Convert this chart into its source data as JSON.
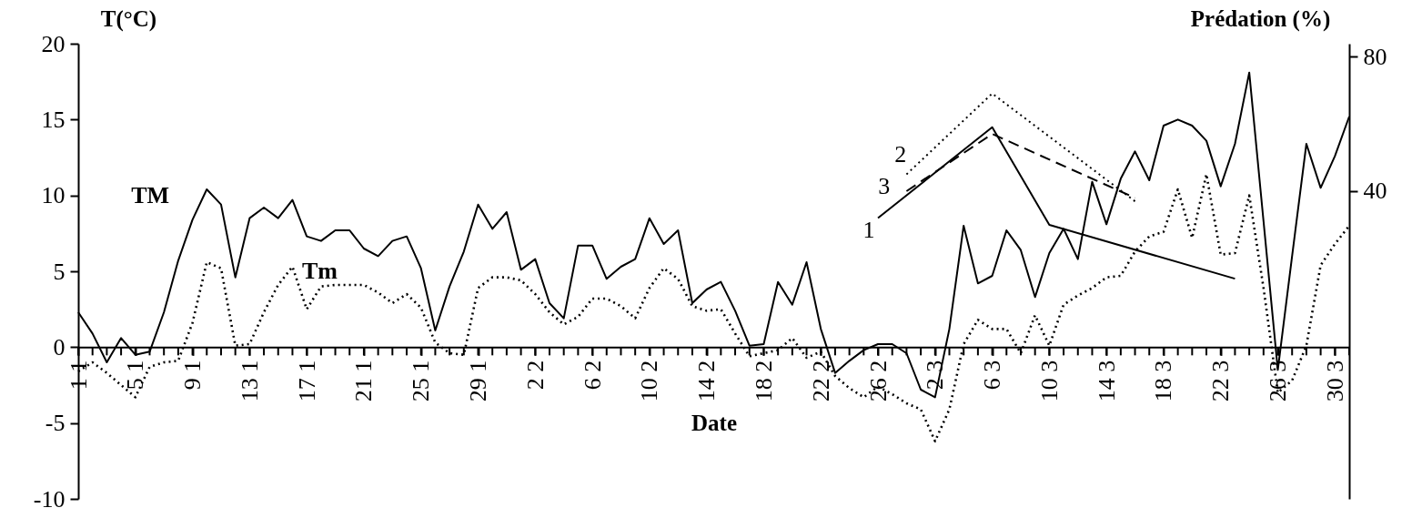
{
  "chart_data": {
    "type": "line",
    "xlabel": "Date",
    "ylabel": "T(°C)",
    "y2label": "Prédation (%)",
    "x": [
      "--01-01",
      "--01-02",
      "--01-03",
      "--01-04",
      "--01-05",
      "--01-06",
      "--01-07",
      "--01-08",
      "--01-09",
      "--01-10",
      "--01-11",
      "--01-12",
      "--01-13",
      "--01-14",
      "--01-15",
      "--01-16",
      "--01-17",
      "--01-18",
      "--01-19",
      "--01-20",
      "--01-21",
      "--01-22",
      "--01-23",
      "--01-24",
      "--01-25",
      "--01-26",
      "--01-27",
      "--01-28",
      "--01-29",
      "--01-30",
      "--01-31",
      "--02-01",
      "--02-02",
      "--02-03",
      "--02-04",
      "--02-05",
      "--02-06",
      "--02-07",
      "--02-08",
      "--02-09",
      "--02-10",
      "--02-11",
      "--02-12",
      "--02-13",
      "--02-14",
      "--02-15",
      "--02-16",
      "--02-17",
      "--02-18",
      "--02-19",
      "--02-20",
      "--02-21",
      "--02-22",
      "--02-23",
      "--02-24",
      "--02-25",
      "--02-26",
      "--02-27",
      "--02-28",
      "--03-01",
      "--03-02",
      "--03-03",
      "--03-04",
      "--03-05",
      "--03-06",
      "--03-07",
      "--03-08",
      "--03-09",
      "--03-10",
      "--03-11",
      "--03-12",
      "--03-13",
      "--03-14",
      "--03-15",
      "--03-16",
      "--03-17",
      "--03-18",
      "--03-19",
      "--03-20",
      "--03-21",
      "--03-22",
      "--03-23",
      "--03-24",
      "--03-25",
      "--03-26",
      "--03-27",
      "--03-28",
      "--03-29",
      "--03-30",
      "--03-31"
    ],
    "series": [
      {
        "name": "TM",
        "color": "#000000",
        "line_style": "solid",
        "values": [
          2.3,
          0.9,
          -1.0,
          0.6,
          -0.5,
          -0.3,
          2.3,
          5.7,
          8.4,
          10.4,
          9.4,
          4.6,
          8.5,
          9.2,
          8.5,
          9.7,
          7.3,
          7.0,
          7.7,
          7.7,
          6.5,
          6.0,
          7.0,
          7.3,
          5.2,
          1.1,
          4.0,
          6.3,
          9.4,
          7.8,
          8.9,
          5.1,
          5.8,
          2.9,
          1.9,
          6.7,
          6.7,
          4.5,
          5.3,
          5.8,
          8.5,
          6.8,
          7.7,
          2.9,
          3.8,
          4.3,
          2.4,
          0.1,
          0.2,
          4.3,
          2.8,
          5.6,
          1.2,
          -1.7,
          -0.9,
          -0.2,
          0.2,
          0.2,
          -0.4,
          -2.8,
          -3.3,
          1.2,
          8.0,
          4.2,
          4.7,
          7.7,
          6.4,
          3.3,
          6.2,
          7.8,
          5.8,
          10.9,
          8.1,
          11.1,
          12.9,
          11.0,
          14.6,
          15.0,
          14.6,
          13.6,
          10.6,
          13.4,
          18.1,
          8.3,
          -1.5,
          6.0,
          13.4,
          10.5,
          12.6,
          15.2
        ]
      },
      {
        "name": "Tm",
        "color": "#000000",
        "line_style": "dotted",
        "values": [
          -1.6,
          -1.0,
          -1.7,
          -2.5,
          -3.3,
          -1.3,
          -1.0,
          -0.9,
          1.6,
          5.6,
          5.2,
          0.1,
          0.2,
          2.3,
          4.1,
          5.3,
          2.5,
          4.0,
          4.1,
          4.1,
          4.1,
          3.6,
          2.9,
          3.5,
          2.6,
          0.3,
          -0.4,
          -0.5,
          3.9,
          4.6,
          4.6,
          4.4,
          3.5,
          2.3,
          1.5,
          2.0,
          3.2,
          3.2,
          2.7,
          1.9,
          3.9,
          5.2,
          4.5,
          2.7,
          2.4,
          2.5,
          0.9,
          -0.6,
          -0.4,
          -0.2,
          0.6,
          -0.7,
          -0.3,
          -1.9,
          -2.7,
          -3.3,
          -2.6,
          -3.1,
          -3.7,
          -4.1,
          -6.2,
          -4.1,
          0.2,
          1.8,
          1.2,
          1.2,
          -0.4,
          2.1,
          0.1,
          2.8,
          3.4,
          3.9,
          4.6,
          4.7,
          6.3,
          7.3,
          7.6,
          10.4,
          7.2,
          11.4,
          6.1,
          6.2,
          10.0,
          3.9,
          -3.0,
          -2.2,
          0.1,
          5.4,
          6.8,
          8.0
        ]
      },
      {
        "name": "1",
        "color": "#000000",
        "line_style": "solid",
        "axis": "y2",
        "x": [
          "--02-26",
          "--03-06",
          "--03-10",
          "--03-23"
        ],
        "values": [
          32,
          59,
          30,
          14
        ]
      },
      {
        "name": "2",
        "color": "#000000",
        "line_style": "dotted",
        "axis": "y2",
        "x": [
          "--02-28",
          "--03-06",
          "--03-16"
        ],
        "values": [
          45,
          69,
          37
        ]
      },
      {
        "name": "3",
        "color": "#000000",
        "line_style": "dashed",
        "axis": "y2",
        "x": [
          "--02-28",
          "--03-06",
          "--03-16"
        ],
        "values": [
          40,
          57,
          38
        ]
      }
    ],
    "xlim": [
      "--01-01",
      "--03-31"
    ],
    "xticks": [
      {
        "value": "--01-01",
        "label": "1 1"
      },
      {
        "value": "--01-02",
        "label": null
      },
      {
        "value": "--01-03",
        "label": null
      },
      {
        "value": "--01-04",
        "label": null
      },
      {
        "value": "--01-05",
        "label": "5 1"
      },
      {
        "value": "--01-06",
        "label": null
      },
      {
        "value": "--01-07",
        "label": null
      },
      {
        "value": "--01-08",
        "label": null
      },
      {
        "value": "--01-09",
        "label": "9 1"
      },
      {
        "value": "--01-10",
        "label": null
      },
      {
        "value": "--01-11",
        "label": null
      },
      {
        "value": "--01-12",
        "label": null
      },
      {
        "value": "--01-13",
        "label": "13 1"
      },
      {
        "value": "--01-14",
        "label": null
      },
      {
        "value": "--01-15",
        "label": null
      },
      {
        "value": "--01-16",
        "label": null
      },
      {
        "value": "--01-17",
        "label": "17 1"
      },
      {
        "value": "--01-18",
        "label": null
      },
      {
        "value": "--01-19",
        "label": null
      },
      {
        "value": "--01-20",
        "label": null
      },
      {
        "value": "--01-21",
        "label": "21 1"
      },
      {
        "value": "--01-22",
        "label": null
      },
      {
        "value": "--01-23",
        "label": null
      },
      {
        "value": "--01-24",
        "label": null
      },
      {
        "value": "--01-25",
        "label": "25 1"
      },
      {
        "value": "--01-26",
        "label": null
      },
      {
        "value": "--01-27",
        "label": null
      },
      {
        "value": "--01-28",
        "label": null
      },
      {
        "value": "--01-29",
        "label": "29 1"
      },
      {
        "value": "--01-30",
        "label": null
      },
      {
        "value": "--01-31",
        "label": null
      },
      {
        "value": "--02-01",
        "label": null
      },
      {
        "value": "--02-02",
        "label": "2 2"
      },
      {
        "value": "--02-03",
        "label": null
      },
      {
        "value": "--02-04",
        "label": null
      },
      {
        "value": "--02-05",
        "label": null
      },
      {
        "value": "--02-06",
        "label": "6 2"
      },
      {
        "value": "--02-07",
        "label": null
      },
      {
        "value": "--02-08",
        "label": null
      },
      {
        "value": "--02-09",
        "label": null
      },
      {
        "value": "--02-10",
        "label": "10 2"
      },
      {
        "value": "--02-11",
        "label": null
      },
      {
        "value": "--02-12",
        "label": null
      },
      {
        "value": "--02-13",
        "label": null
      },
      {
        "value": "--02-14",
        "label": "14 2"
      },
      {
        "value": "--02-15",
        "label": null
      },
      {
        "value": "--02-16",
        "label": null
      },
      {
        "value": "--02-17",
        "label": null
      },
      {
        "value": "--02-18",
        "label": "18 2"
      },
      {
        "value": "--02-19",
        "label": null
      },
      {
        "value": "--02-20",
        "label": null
      },
      {
        "value": "--02-21",
        "label": null
      },
      {
        "value": "--02-22",
        "label": "22 2"
      },
      {
        "value": "--02-23",
        "label": null
      },
      {
        "value": "--02-24",
        "label": null
      },
      {
        "value": "--02-25",
        "label": null
      },
      {
        "value": "--02-26",
        "label": "26 2"
      },
      {
        "value": "--02-27",
        "label": null
      },
      {
        "value": "--02-28",
        "label": null
      },
      {
        "value": "--03-01",
        "label": null
      },
      {
        "value": "--03-02",
        "label": "2 3"
      },
      {
        "value": "--03-03",
        "label": null
      },
      {
        "value": "--03-04",
        "label": null
      },
      {
        "value": "--03-05",
        "label": null
      },
      {
        "value": "--03-06",
        "label": "6 3"
      },
      {
        "value": "--03-07",
        "label": null
      },
      {
        "value": "--03-08",
        "label": null
      },
      {
        "value": "--03-09",
        "label": null
      },
      {
        "value": "--03-10",
        "label": "10 3"
      },
      {
        "value": "--03-11",
        "label": null
      },
      {
        "value": "--03-12",
        "label": null
      },
      {
        "value": "--03-13",
        "label": null
      },
      {
        "value": "--03-14",
        "label": "14 3"
      },
      {
        "value": "--03-15",
        "label": null
      },
      {
        "value": "--03-16",
        "label": null
      },
      {
        "value": "--03-17",
        "label": null
      },
      {
        "value": "--03-18",
        "label": "18 3"
      },
      {
        "value": "--03-19",
        "label": null
      },
      {
        "value": "--03-20",
        "label": null
      },
      {
        "value": "--03-21",
        "label": null
      },
      {
        "value": "--03-22",
        "label": "22 3"
      },
      {
        "value": "--03-23",
        "label": null
      },
      {
        "value": "--03-24",
        "label": null
      },
      {
        "value": "--03-25",
        "label": null
      },
      {
        "value": "--03-26",
        "label": "26 3"
      },
      {
        "value": "--03-27",
        "label": null
      },
      {
        "value": "--03-28",
        "label": null
      },
      {
        "value": "--03-29",
        "label": null
      },
      {
        "value": "--03-30",
        "label": "30 3"
      },
      {
        "value": "--03-31",
        "label": null
      }
    ],
    "ylim": [
      -10,
      20
    ],
    "yticks": [
      -10,
      -5,
      0,
      5,
      10,
      15,
      20
    ],
    "y2lim": [
      -51.4,
      83.8
    ],
    "y2ticks": [
      40,
      80
    ]
  }
}
